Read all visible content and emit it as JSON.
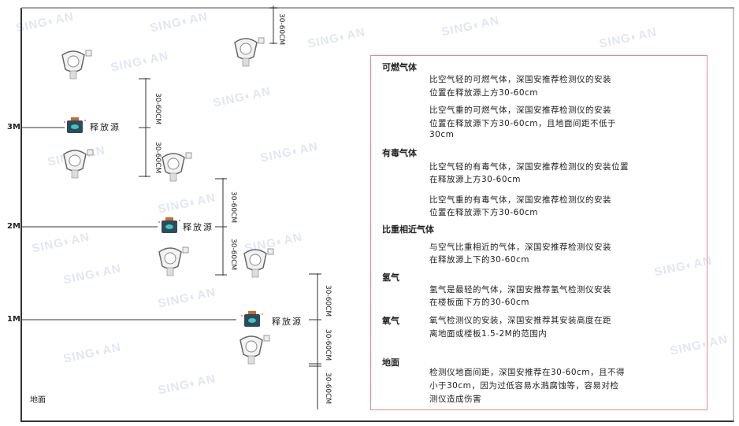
{
  "watermark": "SINGOAN 深国安",
  "levels": {
    "m3": "3M",
    "m2": "2M",
    "m1": "1M",
    "ground": "地面"
  },
  "source_label": "释放源",
  "dimension_label": "30-60CM",
  "notes": {
    "flammable": {
      "heading": "可燃气体",
      "p1": [
        "比空气轻的可燃气体，深国安推荐检测仪的安装",
        "位置在释放源上方30-60cm"
      ],
      "p2": [
        "比空气重的可燃气体，深国安推荐检测仪的安装",
        "位置在释放源下方30-60cm，且地面间距不低于",
        "30cm"
      ]
    },
    "toxic": {
      "heading": "有毒气体",
      "p1": [
        "比空气轻的有毒气体，深国安推荐检测仪的安装位置",
        "在释放源上方30-60cm"
      ],
      "p2": [
        "比空气重的有毒气体，深国安推荐检测仪的安装",
        "位置在释放源下方30-60cm"
      ]
    },
    "similar": {
      "heading": "比重相近气体",
      "p1": [
        "与空气比重相近的气体，深国安推荐检测仪安装",
        "在释放源上下的30-60cm"
      ]
    },
    "hydrogen": {
      "heading": "氢气",
      "p1": [
        "氢气是最轻的气体，深国安推荐氢气检测仪安装",
        "在楼板面下方的30-60cm"
      ]
    },
    "oxygen": {
      "heading": "氧气",
      "p1": [
        "氧气检测仪的安装，深国安推荐其安装高度在距",
        "离地面或楼板1.5-2M的范围内"
      ]
    },
    "ground": {
      "heading": "地面",
      "p1": [
        "检测仪地面间距，深国安推荐在30-60cm，且不得",
        "小于30cm，因为过低容易水溅腐蚀等，容易对检",
        "测仪造成伤害"
      ]
    }
  },
  "colors": {
    "box_border": "#e8888a",
    "source_body": "#2f4a5a",
    "source_cap": "#c0702a",
    "source_face": "#3cc8c0"
  }
}
